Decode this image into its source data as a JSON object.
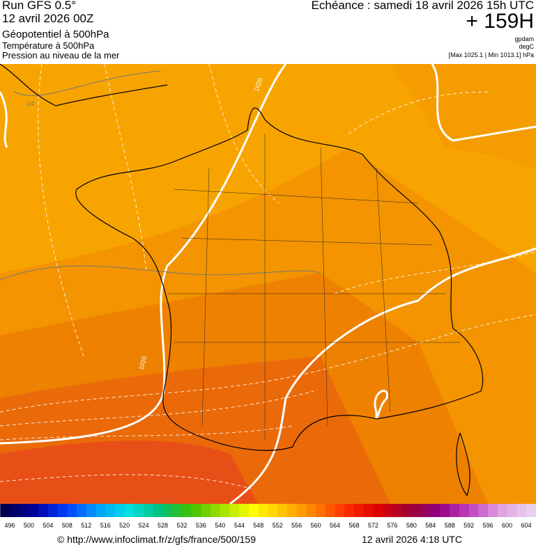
{
  "header": {
    "run": "Run GFS 0.5°",
    "date": "12 avril 2026 00Z",
    "layer1": "Géopotentiel à 500hPa",
    "layer2": "Température à 500hPa",
    "layer3": "Pression au niveau de la mer",
    "echeance": "Echéance : samedi 18 avril 2026 15h UTC",
    "offset": "+ 159H",
    "unit1": "gpdam",
    "unit2": "degC",
    "unit3": "[Max 1025.1 | Min 1013.1] hPa"
  },
  "map": {
    "contour_labels": [
      "1020",
      "1020",
      "-24"
    ]
  },
  "legend": {
    "labels": [
      496,
      500,
      504,
      508,
      512,
      516,
      520,
      524,
      528,
      532,
      536,
      540,
      544,
      548,
      552,
      556,
      560,
      564,
      568,
      572,
      576,
      580,
      584,
      588,
      592,
      596,
      600,
      604
    ]
  },
  "footer": {
    "url": "© http://www.infoclimat.fr/z/gfs/france/500/159",
    "timestamp": "12 avril 2026  4:18 UTC"
  }
}
